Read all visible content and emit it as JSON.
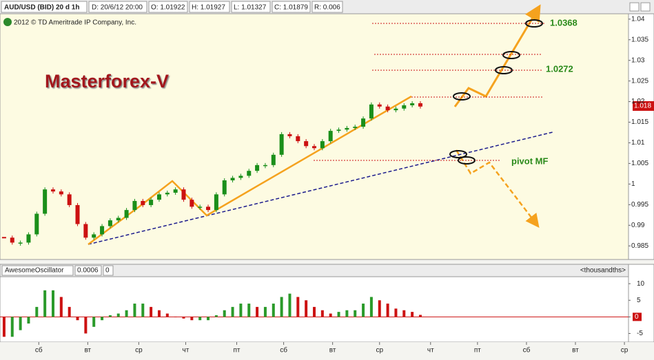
{
  "header": {
    "symbol": "AUD/USD (BID) 20 d 1h",
    "date": "D: 20/6/12 20:00",
    "open": "O: 1.01922",
    "high": "H: 1.01927",
    "low": "L: 1.01327",
    "close": "C: 1.01879",
    "range": "R: 0.006",
    "copyright": "2012 © TD Ameritrade IP Company, Inc."
  },
  "chart_data": [
    {
      "type": "candlestick",
      "title": "Masterforex-V",
      "annotations": [
        "1.0368",
        "1.0272",
        "pivot MF"
      ],
      "last_price_label": "1.018",
      "up_color": "#1a8f1a",
      "down_color": "#cc1111",
      "x": [
        0,
        4,
        8,
        12,
        16,
        20,
        24,
        28,
        32,
        36,
        40,
        44,
        48,
        52,
        56,
        60,
        64,
        68,
        72,
        76,
        80,
        84,
        88,
        92,
        96,
        100,
        104,
        108,
        112,
        116,
        120,
        124,
        128,
        132,
        136,
        140,
        144,
        148,
        152,
        156,
        160,
        164,
        168,
        172,
        176,
        180,
        184,
        188,
        192,
        196,
        200,
        204
      ],
      "values": [
        0.987,
        0.9858,
        0.9858,
        0.9878,
        0.9928,
        0.9987,
        0.9982,
        0.9975,
        0.9949,
        0.9903,
        0.987,
        0.9878,
        0.9898,
        0.9912,
        0.9918,
        0.9937,
        0.9959,
        0.9949,
        0.9962,
        0.9975,
        0.9979,
        0.9987,
        0.9962,
        0.9945,
        0.9945,
        0.9937,
        0.9975,
        1.0009,
        1.0015,
        1.002,
        1.0032,
        1.0046,
        1.0046,
        1.0071,
        1.0121,
        1.0116,
        1.0104,
        1.0092,
        1.0087,
        1.0104,
        1.0129,
        1.0132,
        1.0136,
        1.0139,
        1.0159,
        1.0193,
        1.0188,
        1.0179,
        1.0183,
        1.0191,
        1.0196,
        1.0188
      ],
      "ylim": [
        0.9817,
        1.0413
      ],
      "yticks": [
        0.985,
        0.99,
        0.995,
        1,
        1.005,
        1.01,
        1.015,
        1.02,
        1.025,
        1.03,
        1.035,
        1.04
      ],
      "xlim": [
        -2,
        306
      ],
      "xticks": [
        {
          "value": 17,
          "label": "сб"
        },
        {
          "value": 41,
          "label": "вт"
        },
        {
          "value": 66,
          "label": "ср"
        },
        {
          "value": 89,
          "label": "чт"
        },
        {
          "value": 114,
          "label": "пт"
        },
        {
          "value": 137,
          "label": "сб"
        },
        {
          "value": 161,
          "label": "вт"
        },
        {
          "value": 184,
          "label": "ср"
        },
        {
          "value": 209,
          "label": "чт"
        },
        {
          "value": 232,
          "label": "пт"
        },
        {
          "value": 256,
          "label": "сб"
        },
        {
          "value": 280,
          "label": "вт"
        },
        {
          "value": 304,
          "label": "ср"
        }
      ]
    },
    {
      "type": "bar",
      "name": "AwesomeOscillator",
      "header_values": [
        "0.0006",
        "0"
      ],
      "units": "<thousandths>",
      "up_color": "#2a9a2a",
      "down_color": "#cc1111",
      "zero_color": "#cc1111",
      "x": [
        0,
        4,
        8,
        12,
        16,
        20,
        24,
        28,
        32,
        36,
        40,
        44,
        48,
        52,
        56,
        60,
        64,
        68,
        72,
        76,
        80,
        84,
        88,
        92,
        96,
        100,
        104,
        108,
        112,
        116,
        120,
        124,
        128,
        132,
        136,
        140,
        144,
        148,
        152,
        156,
        160,
        164,
        168,
        172,
        176,
        180,
        184,
        188,
        192,
        196,
        200,
        204
      ],
      "values": [
        -6,
        -6,
        -4,
        -2,
        3,
        8,
        8,
        6,
        3,
        -1,
        -5,
        -3,
        -1,
        0.5,
        1,
        2,
        4,
        4,
        3,
        2,
        1,
        0,
        -0.5,
        -1,
        -1,
        -1,
        0.5,
        2,
        3,
        4,
        4,
        3,
        3,
        4,
        6,
        7,
        6,
        5,
        3,
        2,
        1,
        1.5,
        2,
        2,
        4,
        6,
        5,
        4,
        2.5,
        2,
        1.5,
        0.6
      ],
      "ylim": [
        -7.6,
        12.1
      ],
      "yticks": [
        10,
        5,
        0,
        -5
      ],
      "xlim": [
        -2,
        306
      ]
    }
  ]
}
